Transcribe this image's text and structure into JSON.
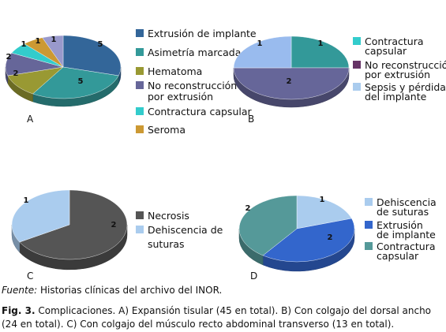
{
  "chart_data": [
    {
      "type": "pie",
      "panel": "A",
      "slices": [
        {
          "label": "Extrusión de implante",
          "value": 5,
          "color": "#336699"
        },
        {
          "label": "Asimetría marcada",
          "value": 5,
          "color": "#339999"
        },
        {
          "label": "Hematoma",
          "value": 2,
          "color": "#999933"
        },
        {
          "label": "No reconstrucción por extrusión",
          "value": 2,
          "color": "#666699"
        },
        {
          "label": "Contractura capsular",
          "value": 1,
          "color": "#33cccc"
        },
        {
          "label": "Seroma",
          "value": 1,
          "color": "#cc9933"
        },
        {
          "label": "",
          "value": 1,
          "color": "#9999cc"
        }
      ],
      "legend": [
        {
          "text": "Extrusión de implante",
          "color": "#336699"
        },
        {
          "text": "Asimetría marcada",
          "color": "#339999"
        },
        {
          "text": "Hematoma",
          "color": "#999933"
        },
        {
          "lines": [
            "No reconstrucción",
            "por extrusión"
          ],
          "color": "#666699"
        },
        {
          "text": "Contractura capsular",
          "color": "#33cccc"
        },
        {
          "text": "Seroma",
          "color": "#cc9933"
        }
      ]
    },
    {
      "type": "pie",
      "panel": "B",
      "slices": [
        {
          "label": "Contractura capsular",
          "value": 1,
          "color": "#339999"
        },
        {
          "label": "No reconstrucción por extrusión",
          "value": 2,
          "color": "#666699"
        },
        {
          "label": "Sepsis y pérdida del implante",
          "value": 1,
          "color": "#99bbee"
        }
      ],
      "legend": [
        {
          "lines": [
            "Contractura",
            "capsular"
          ],
          "color": "#33cccc"
        },
        {
          "lines": [
            "No reconstrucción",
            "por extrusión"
          ],
          "color": "#663366"
        },
        {
          "lines": [
            "Sepsis y pérdida",
            "del implante"
          ],
          "color": "#aaccee"
        }
      ]
    },
    {
      "type": "pie",
      "panel": "C",
      "slices": [
        {
          "label": "Necrosis",
          "value": 2,
          "color": "#555555"
        },
        {
          "label": "Dehiscencia de suturas",
          "value": 1,
          "color": "#aaccee"
        }
      ],
      "legend": [
        {
          "text": "Necrosis",
          "color": "#555555"
        },
        {
          "lines": [
            "Dehiscencia de",
            "suturas"
          ],
          "color": "#aaccee"
        }
      ]
    },
    {
      "type": "pie",
      "panel": "D",
      "slices": [
        {
          "label": "Dehiscencia de suturas",
          "value": 1,
          "color": "#aaccee"
        },
        {
          "label": "Extrusión de implante",
          "value": 2,
          "color": "#3366cc"
        },
        {
          "label": "Contractura capsular",
          "value": 2,
          "color": "#559999"
        }
      ],
      "legend": [
        {
          "lines": [
            "Dehiscencia",
            "de suturas"
          ],
          "color": "#aaccee"
        },
        {
          "lines": [
            "Extrusión",
            "de implante"
          ],
          "color": "#3366cc"
        },
        {
          "lines": [
            "Contractura",
            "capsular"
          ],
          "color": "#559999"
        }
      ]
    }
  ],
  "caption": {
    "source_label": "Fuente:",
    "source_text": " Historias clínicas del archivo del INOR.",
    "fig_label": "Fig. 3.",
    "fig_text": " Complicaciones. A) Expansión tisular (45 en total). B) Con colgajo del dorsal ancho (24 en total). C) Con colgajo del músculo recto abdominal transverso (13 en total)."
  }
}
